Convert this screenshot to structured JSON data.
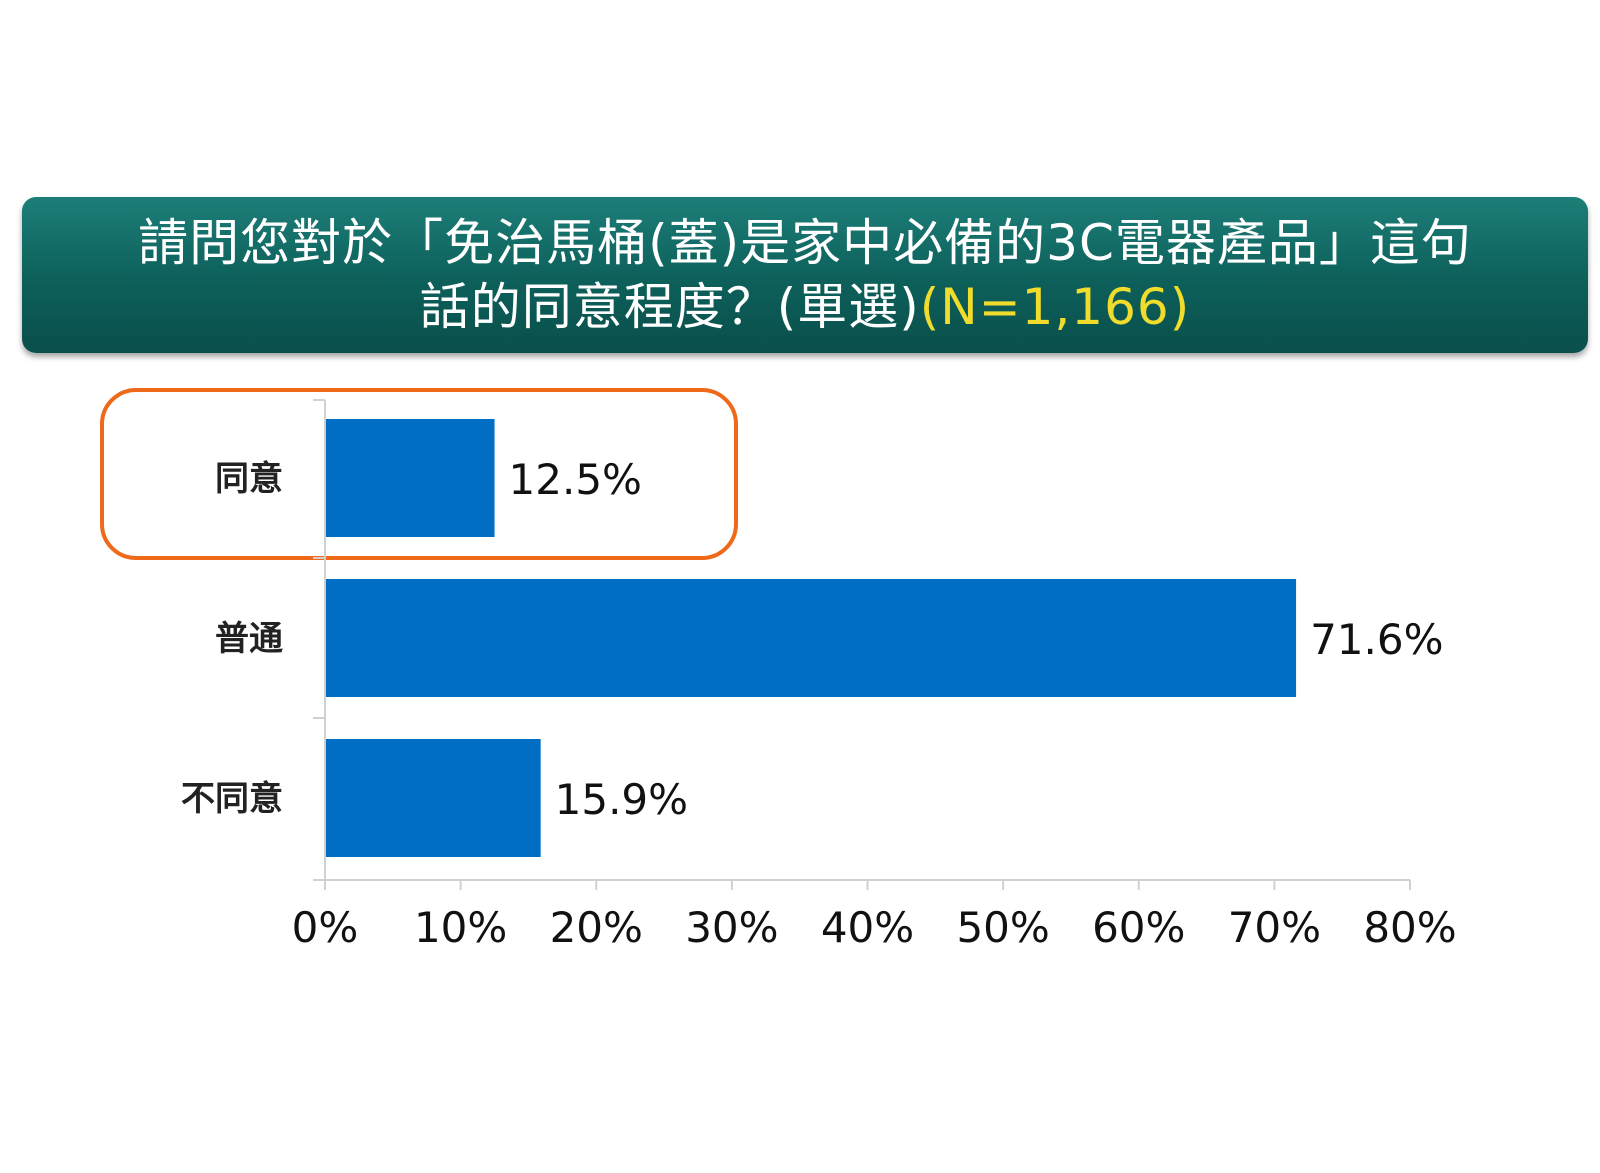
{
  "header": {
    "line1": "請問您對於「免治馬桶(蓋)是家中必備的3C電器產品」這句",
    "line2_main": "話的同意程度？(單選)",
    "line2_highlight": "(N=1,166)"
  },
  "colors": {
    "bar": "#006ec4",
    "banner": "#0d5f5a",
    "highlight_box": "#ee6a1a",
    "highlight_text": "#f0dc2c"
  },
  "chart_data": {
    "type": "bar",
    "orientation": "horizontal",
    "categories": [
      "同意",
      "普通",
      "不同意"
    ],
    "values": [
      12.5,
      71.6,
      15.9
    ],
    "value_labels": [
      "12.5%",
      "71.6%",
      "15.9%"
    ],
    "xlim": [
      0,
      80
    ],
    "x_ticks": [
      0,
      10,
      20,
      30,
      40,
      50,
      60,
      70,
      80
    ],
    "x_tick_labels": [
      "0%",
      "10%",
      "20%",
      "30%",
      "40%",
      "50%",
      "60%",
      "70%",
      "80%"
    ],
    "highlighted_category": "同意",
    "grid": false
  }
}
